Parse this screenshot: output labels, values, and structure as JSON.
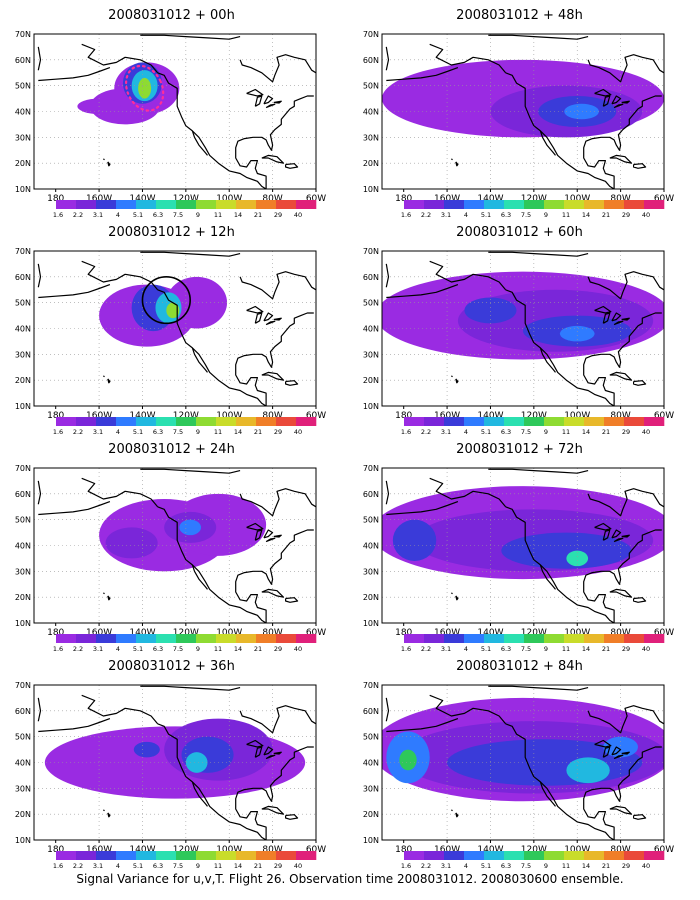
{
  "figure": {
    "caption": "Signal Variance for u,v,T. Flight 26. Observation time 2008031012. 2008030600 ensemble."
  },
  "chart_data": [
    {
      "type": "heatmap",
      "title": "2008031012 + 00h",
      "lead_hour": 0,
      "x_ticks": [
        "180",
        "160W",
        "140W",
        "120W",
        "100W",
        "80W",
        "60W"
      ],
      "y_ticks": [
        "70N",
        "60N",
        "50N",
        "40N",
        "30N",
        "20N",
        "10N"
      ],
      "xlim": [
        -190,
        -60
      ],
      "ylim": [
        10,
        70
      ],
      "grid": true,
      "colorbar_levels": [
        "1.6",
        "2.2",
        "3.1",
        "4",
        "5.1",
        "6.3",
        "7.5",
        "9",
        "11",
        "14",
        "21",
        "29",
        "40"
      ],
      "blobs": [
        {
          "lon": -138,
          "lat": 49,
          "rx": 15,
          "ry": 10,
          "level": 0
        },
        {
          "lon": -148,
          "lat": 42,
          "rx": 16,
          "ry": 7,
          "level": 0
        },
        {
          "lon": -160,
          "lat": 42,
          "rx": 10,
          "ry": 3,
          "level": 0
        },
        {
          "lon": -140,
          "lat": 51,
          "rx": 9,
          "ry": 8,
          "level": 2
        },
        {
          "lon": -139,
          "lat": 50,
          "rx": 6,
          "ry": 6,
          "level": 4
        },
        {
          "lon": -139,
          "lat": 49,
          "rx": 3,
          "ry": 4,
          "level": 7
        }
      ],
      "highlight": "dotted-ellipse"
    },
    {
      "type": "heatmap",
      "title": "2008031012 + 12h",
      "lead_hour": 12,
      "x_ticks": [
        "180",
        "160W",
        "140W",
        "120W",
        "100W",
        "80W",
        "60W"
      ],
      "y_ticks": [
        "70N",
        "60N",
        "50N",
        "40N",
        "30N",
        "20N",
        "10N"
      ],
      "xlim": [
        -190,
        -60
      ],
      "ylim": [
        10,
        70
      ],
      "grid": true,
      "colorbar_levels": [
        "1.6",
        "2.2",
        "3.1",
        "4",
        "5.1",
        "6.3",
        "7.5",
        "9",
        "11",
        "14",
        "21",
        "29",
        "40"
      ],
      "blobs": [
        {
          "lon": -138,
          "lat": 45,
          "rx": 22,
          "ry": 12,
          "level": 0
        },
        {
          "lon": -115,
          "lat": 50,
          "rx": 14,
          "ry": 10,
          "level": 0
        },
        {
          "lon": -135,
          "lat": 48,
          "rx": 10,
          "ry": 9,
          "level": 2
        },
        {
          "lon": -128,
          "lat": 48,
          "rx": 6,
          "ry": 6,
          "level": 4
        },
        {
          "lon": -126,
          "lat": 47,
          "rx": 3,
          "ry": 3,
          "level": 7
        }
      ],
      "highlight": "solid-ellipse"
    },
    {
      "type": "heatmap",
      "title": "2008031012 + 24h",
      "lead_hour": 24,
      "x_ticks": [
        "180",
        "160W",
        "140W",
        "120W",
        "100W",
        "80W",
        "60W"
      ],
      "y_ticks": [
        "70N",
        "60N",
        "50N",
        "40N",
        "30N",
        "20N",
        "10N"
      ],
      "xlim": [
        -190,
        -60
      ],
      "ylim": [
        10,
        70
      ],
      "grid": true,
      "colorbar_levels": [
        "1.6",
        "2.2",
        "3.1",
        "4",
        "5.1",
        "6.3",
        "7.5",
        "9",
        "11",
        "14",
        "21",
        "29",
        "40"
      ],
      "blobs": [
        {
          "lon": -130,
          "lat": 44,
          "rx": 30,
          "ry": 14,
          "level": 0
        },
        {
          "lon": -105,
          "lat": 48,
          "rx": 22,
          "ry": 12,
          "level": 0
        },
        {
          "lon": -145,
          "lat": 41,
          "rx": 12,
          "ry": 6,
          "level": 1
        },
        {
          "lon": -118,
          "lat": 47,
          "rx": 12,
          "ry": 6,
          "level": 1
        },
        {
          "lon": -118,
          "lat": 47,
          "rx": 5,
          "ry": 3,
          "level": 3
        }
      ],
      "highlight": ""
    },
    {
      "type": "heatmap",
      "title": "2008031012 + 36h",
      "lead_hour": 36,
      "x_ticks": [
        "180",
        "160W",
        "140W",
        "120W",
        "100W",
        "80W",
        "60W"
      ],
      "y_ticks": [
        "70N",
        "60N",
        "50N",
        "40N",
        "30N",
        "20N",
        "10N"
      ],
      "xlim": [
        -190,
        -60
      ],
      "ylim": [
        10,
        70
      ],
      "grid": true,
      "colorbar_levels": [
        "1.6",
        "2.2",
        "3.1",
        "4",
        "5.1",
        "6.3",
        "7.5",
        "9",
        "11",
        "14",
        "21",
        "29",
        "40"
      ],
      "blobs": [
        {
          "lon": -125,
          "lat": 40,
          "rx": 60,
          "ry": 14,
          "level": 0
        },
        {
          "lon": -105,
          "lat": 45,
          "rx": 25,
          "ry": 12,
          "level": 1
        },
        {
          "lon": -110,
          "lat": 43,
          "rx": 12,
          "ry": 7,
          "level": 2
        },
        {
          "lon": -115,
          "lat": 40,
          "rx": 5,
          "ry": 4,
          "level": 4
        },
        {
          "lon": -138,
          "lat": 45,
          "rx": 6,
          "ry": 3,
          "level": 2
        }
      ],
      "highlight": ""
    },
    {
      "type": "heatmap",
      "title": "2008031012 + 48h",
      "lead_hour": 48,
      "x_ticks": [
        "180",
        "160W",
        "140W",
        "120W",
        "100W",
        "80W",
        "60W"
      ],
      "y_ticks": [
        "70N",
        "60N",
        "50N",
        "40N",
        "30N",
        "20N",
        "10N"
      ],
      "xlim": [
        -190,
        -60
      ],
      "ylim": [
        10,
        70
      ],
      "grid": true,
      "colorbar_levels": [
        "1.6",
        "2.2",
        "3.1",
        "4",
        "5.1",
        "6.3",
        "7.5",
        "9",
        "11",
        "14",
        "21",
        "29",
        "40"
      ],
      "blobs": [
        {
          "lon": -125,
          "lat": 45,
          "rx": 65,
          "ry": 15,
          "level": 0
        },
        {
          "lon": -105,
          "lat": 40,
          "rx": 35,
          "ry": 10,
          "level": 1
        },
        {
          "lon": -100,
          "lat": 40,
          "rx": 18,
          "ry": 6,
          "level": 2
        },
        {
          "lon": -98,
          "lat": 40,
          "rx": 8,
          "ry": 3,
          "level": 3
        }
      ],
      "highlight": ""
    },
    {
      "type": "heatmap",
      "title": "2008031012 + 60h",
      "lead_hour": 60,
      "x_ticks": [
        "180",
        "160W",
        "140W",
        "120W",
        "100W",
        "80W",
        "60W"
      ],
      "y_ticks": [
        "70N",
        "60N",
        "50N",
        "40N",
        "30N",
        "20N",
        "10N"
      ],
      "xlim": [
        -190,
        -60
      ],
      "ylim": [
        10,
        70
      ],
      "grid": true,
      "colorbar_levels": [
        "1.6",
        "2.2",
        "3.1",
        "4",
        "5.1",
        "6.3",
        "7.5",
        "9",
        "11",
        "14",
        "21",
        "29",
        "40"
      ],
      "blobs": [
        {
          "lon": -125,
          "lat": 45,
          "rx": 68,
          "ry": 17,
          "level": 0
        },
        {
          "lon": -110,
          "lat": 43,
          "rx": 45,
          "ry": 12,
          "level": 1
        },
        {
          "lon": -100,
          "lat": 39,
          "rx": 25,
          "ry": 6,
          "level": 2
        },
        {
          "lon": -140,
          "lat": 47,
          "rx": 12,
          "ry": 5,
          "level": 2
        },
        {
          "lon": -100,
          "lat": 38,
          "rx": 8,
          "ry": 3,
          "level": 3
        }
      ],
      "highlight": ""
    },
    {
      "type": "heatmap",
      "title": "2008031012 + 72h",
      "lead_hour": 72,
      "x_ticks": [
        "180",
        "160W",
        "140W",
        "120W",
        "100W",
        "80W",
        "60W"
      ],
      "y_ticks": [
        "70N",
        "60N",
        "50N",
        "40N",
        "30N",
        "20N",
        "10N"
      ],
      "xlim": [
        -190,
        -60
      ],
      "ylim": [
        10,
        70
      ],
      "grid": true,
      "colorbar_levels": [
        "1.6",
        "2.2",
        "3.1",
        "4",
        "5.1",
        "6.3",
        "7.5",
        "9",
        "11",
        "14",
        "21",
        "29",
        "40"
      ],
      "blobs": [
        {
          "lon": -125,
          "lat": 45,
          "rx": 70,
          "ry": 18,
          "level": 0
        },
        {
          "lon": -120,
          "lat": 42,
          "rx": 55,
          "ry": 12,
          "level": 1
        },
        {
          "lon": -105,
          "lat": 38,
          "rx": 30,
          "ry": 7,
          "level": 2
        },
        {
          "lon": -175,
          "lat": 42,
          "rx": 10,
          "ry": 8,
          "level": 2
        },
        {
          "lon": -100,
          "lat": 35,
          "rx": 5,
          "ry": 3,
          "level": 5
        }
      ],
      "highlight": ""
    },
    {
      "type": "heatmap",
      "title": "2008031012 + 84h",
      "lead_hour": 84,
      "x_ticks": [
        "180",
        "160W",
        "140W",
        "120W",
        "100W",
        "80W",
        "60W"
      ],
      "y_ticks": [
        "70N",
        "60N",
        "50N",
        "40N",
        "30N",
        "20N",
        "10N"
      ],
      "xlim": [
        -190,
        -60
      ],
      "ylim": [
        10,
        70
      ],
      "grid": true,
      "colorbar_levels": [
        "1.6",
        "2.2",
        "3.1",
        "4",
        "5.1",
        "6.3",
        "7.5",
        "9",
        "11",
        "14",
        "21",
        "29",
        "40"
      ],
      "blobs": [
        {
          "lon": -125,
          "lat": 45,
          "rx": 70,
          "ry": 20,
          "level": 0
        },
        {
          "lon": -120,
          "lat": 42,
          "rx": 62,
          "ry": 14,
          "level": 1
        },
        {
          "lon": -115,
          "lat": 40,
          "rx": 45,
          "ry": 9,
          "level": 2
        },
        {
          "lon": -178,
          "lat": 42,
          "rx": 10,
          "ry": 10,
          "level": 3
        },
        {
          "lon": -178,
          "lat": 41,
          "rx": 4,
          "ry": 4,
          "level": 6
        },
        {
          "lon": -95,
          "lat": 37,
          "rx": 10,
          "ry": 5,
          "level": 4
        },
        {
          "lon": -80,
          "lat": 46,
          "rx": 8,
          "ry": 4,
          "level": 3
        }
      ],
      "highlight": ""
    }
  ],
  "colors": {
    "levels": [
      "#9a2be2",
      "#7a26d9",
      "#3a3bd9",
      "#2f7bff",
      "#21b8e0",
      "#2be0b0",
      "#2ec85a",
      "#8edb32",
      "#c9dc2a",
      "#e8b82a",
      "#f07e28",
      "#ea4a3a",
      "#e0207a"
    ],
    "coastline": "#000000",
    "grid": "#999999",
    "highlight_dots": "#ff2d9a"
  }
}
